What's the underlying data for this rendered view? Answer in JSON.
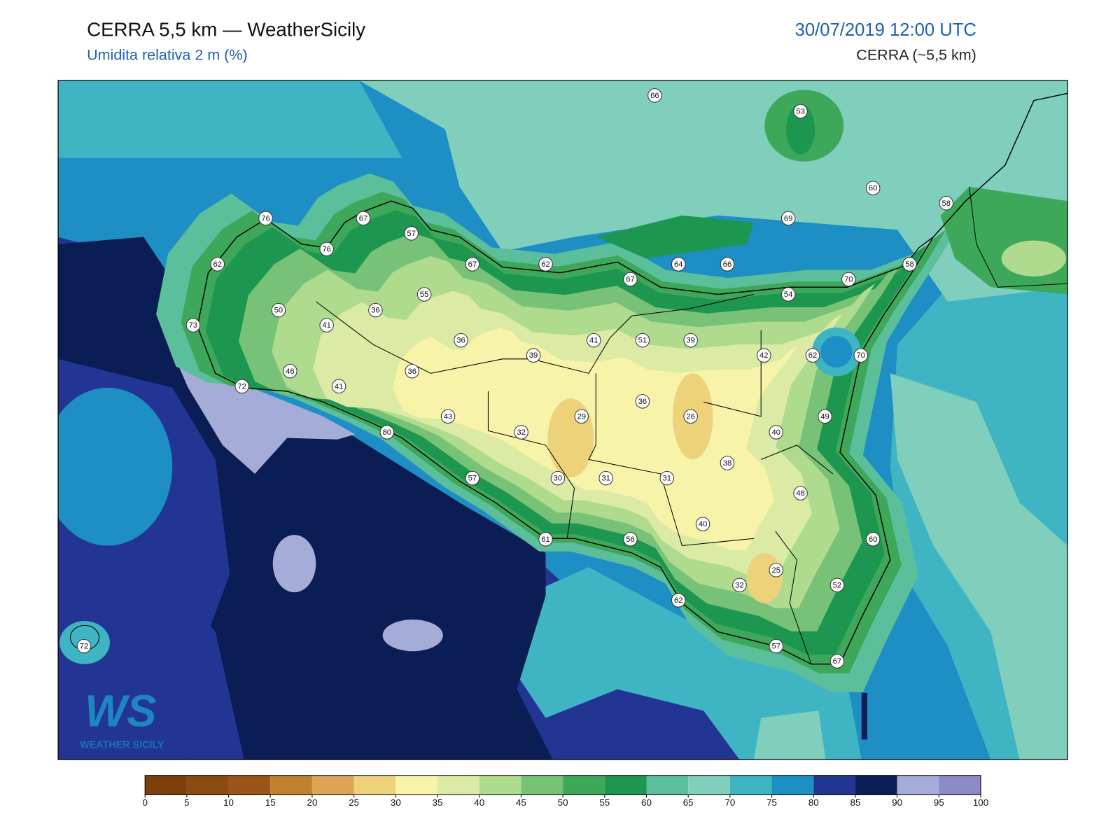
{
  "header": {
    "title": "CERRA 5,5 km — WeatherSicily",
    "subtitle": "Umidita relativa 2 m (%)",
    "datetime": "30/07/2019 12:00 UTC",
    "model": "CERRA (~5,5 km)"
  },
  "stations": [
    66,
    53,
    60,
    58,
    67,
    57,
    76,
    69,
    76,
    62,
    67,
    62,
    64,
    66,
    58,
    67,
    70,
    55,
    54,
    50,
    36,
    41,
    73,
    36,
    41,
    51,
    39,
    39,
    42,
    62,
    70,
    46,
    36,
    72,
    41,
    36,
    43,
    29,
    26,
    49,
    32,
    80,
    40,
    38,
    57,
    30,
    31,
    31,
    48,
    40,
    61,
    56,
    60,
    25,
    32,
    52,
    62,
    57,
    72,
    67
  ],
  "colorbar": {
    "ticks": [
      0,
      5,
      10,
      15,
      20,
      25,
      30,
      35,
      40,
      45,
      50,
      55,
      60,
      65,
      70,
      75,
      80,
      85,
      90,
      95,
      100
    ],
    "colors": [
      "#7a3f0a",
      "#8b4a10",
      "#9a5518",
      "#c0812e",
      "#dba555",
      "#eed27a",
      "#f7f3a8",
      "#dbeba6",
      "#aedb8e",
      "#77c276",
      "#3ea85a",
      "#1d9650",
      "#5cbf9b",
      "#80cfbd",
      "#3fb5c4",
      "#1d8fc4",
      "#233593",
      "#0b1d55",
      "#a5acd8",
      "#8c8ac7"
    ]
  },
  "logo": {
    "mark": "WS",
    "name": "WEATHER SICILY"
  }
}
